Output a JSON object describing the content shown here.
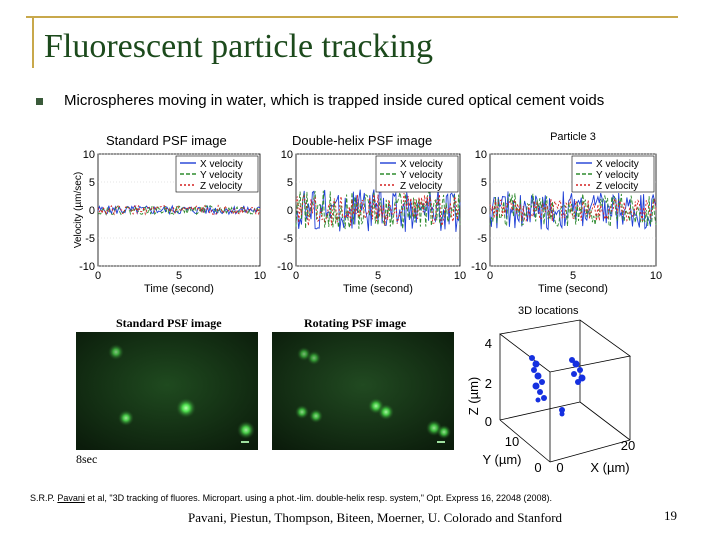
{
  "slide": {
    "title": "Fluorescent particle tracking",
    "bullet": "Microspheres moving in water, which is trapped inside cured optical cement voids",
    "label_standard": "Standard PSF image",
    "label_double": "Double-helix PSF image",
    "citation_prefix": "S.R.P. ",
    "citation_author": "Pavani",
    "citation_rest": " et al, \"3D tracking of fluores. Micropart. using a phot.-lim. double-helix resp. system,\" Opt. Express 16, 22048 (2008).",
    "footer": "Pavani, Piestun, Thompson, Biteen, Moerner, U. Colorado and Stanford",
    "page_number": "19"
  },
  "charts": {
    "colors": {
      "x": "#1f3fd6",
      "y": "#2e8b2e",
      "z": "#d42020"
    },
    "legend": [
      "X velocity",
      "Y velocity",
      "Z velocity"
    ],
    "ylabel": "Velocity (µm/sec)",
    "xlabel": "Time (second)",
    "particle_title": "Particle 3",
    "yticks": [
      "10",
      "5",
      "0",
      "-5",
      "-10"
    ],
    "xticks": [
      "0",
      "5",
      "10"
    ]
  },
  "chart_data": [
    {
      "type": "line",
      "title": "",
      "xlabel": "Time (second)",
      "ylabel": "Velocity (µm/sec)",
      "xlim": [
        0,
        10
      ],
      "ylim": [
        -10,
        10
      ],
      "series": [
        {
          "name": "X velocity",
          "amplitude": 0.8
        },
        {
          "name": "Y velocity",
          "amplitude": 0.8
        },
        {
          "name": "Z velocity",
          "amplitude": 0.8
        }
      ]
    },
    {
      "type": "line",
      "title": "",
      "xlabel": "Time (second)",
      "ylabel": "",
      "xlim": [
        0,
        10
      ],
      "ylim": [
        -10,
        10
      ],
      "series": [
        {
          "name": "X velocity",
          "amplitude": 4
        },
        {
          "name": "Y velocity",
          "amplitude": 3.5
        },
        {
          "name": "Z velocity",
          "amplitude": 3
        }
      ]
    },
    {
      "type": "line",
      "title": "Particle 3",
      "xlabel": "Time (second)",
      "ylabel": "",
      "xlim": [
        0,
        10
      ],
      "ylim": [
        -10,
        10
      ],
      "series": [
        {
          "name": "X velocity",
          "amplitude": 3.5
        },
        {
          "name": "Y velocity",
          "amplitude": 3
        },
        {
          "name": "Z velocity",
          "amplitude": 2
        }
      ]
    }
  ],
  "images": {
    "standard_title": "Standard PSF image",
    "rotating_title": "Rotating PSF image",
    "time_label": "8sec"
  },
  "plot3d": {
    "title": "3D locations",
    "zlabel": "Z (µm)",
    "ylabel": "Y (µm)",
    "xlabel": "X (µm)",
    "zticks": [
      "4",
      "2",
      "0"
    ],
    "yticks": [
      "10",
      "0"
    ],
    "xticks": [
      "0",
      "20"
    ]
  }
}
